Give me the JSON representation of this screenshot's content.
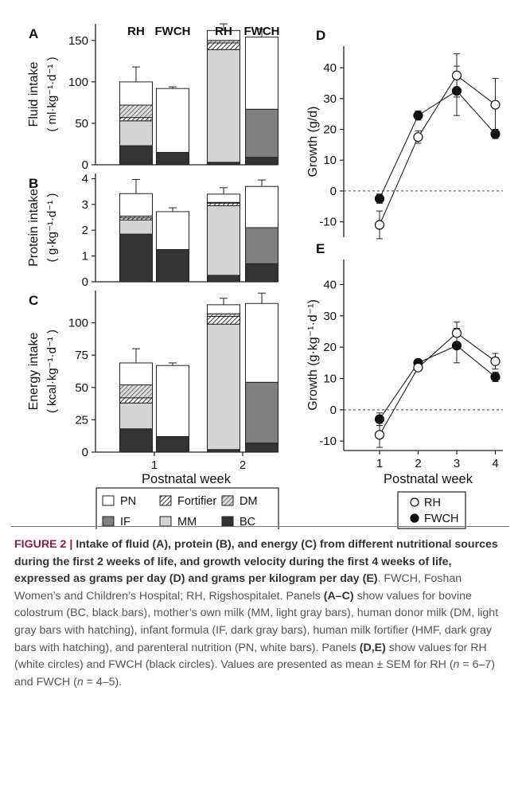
{
  "chart_data": [
    {
      "type": "bar",
      "panel": "A",
      "ylabel": "Fluid intake",
      "yunit": "( ml·kg⁻¹·d⁻¹ )",
      "ylim": [
        0,
        170
      ],
      "yticks": [
        "0",
        "50",
        "100",
        "150"
      ],
      "ytick_values": [
        0,
        50,
        100,
        150
      ],
      "xlabel": "",
      "groups": [
        {
          "category": "1",
          "bars": [
            {
              "label": "RH",
              "stacks": [
                {
                  "source": "BC",
                  "value": 23,
                  "err": 6
                },
                {
                  "source": "MM",
                  "value": 30,
                  "err": 7
                },
                {
                  "source": "Fortifier",
                  "value": 4,
                  "err": 0
                },
                {
                  "source": "DM",
                  "value": 15,
                  "err": 0
                },
                {
                  "source": "PN",
                  "value": 28,
                  "err": 18
                }
              ]
            },
            {
              "label": "FWCH",
              "stacks": [
                {
                  "source": "BC",
                  "value": 15,
                  "err": 3
                },
                {
                  "source": "PN",
                  "value": 77,
                  "err": 2
                }
              ]
            }
          ]
        },
        {
          "category": "2",
          "bars": [
            {
              "label": "RH",
              "stacks": [
                {
                  "source": "BC",
                  "value": 3,
                  "err": 1
                },
                {
                  "source": "MM",
                  "value": 136,
                  "err": 3
                },
                {
                  "source": "Fortifier",
                  "value": 8,
                  "err": 0
                },
                {
                  "source": "DM",
                  "value": 3,
                  "err": 0
                },
                {
                  "source": "PN",
                  "value": 12,
                  "err": 8
                }
              ]
            },
            {
              "label": "FWCH",
              "stacks": [
                {
                  "source": "BC",
                  "value": 9,
                  "err": 2
                },
                {
                  "source": "IF",
                  "value": 58,
                  "err": 12
                },
                {
                  "source": "PN",
                  "value": 87,
                  "err": 10
                }
              ]
            }
          ]
        }
      ]
    },
    {
      "type": "bar",
      "panel": "B",
      "ylabel": "Protein intake",
      "yunit": "( g·kg⁻¹·d⁻¹ )",
      "ylim": [
        0,
        4.2
      ],
      "yticks": [
        "0",
        "1",
        "2",
        "3",
        "4"
      ],
      "ytick_values": [
        0,
        1,
        2,
        3,
        4
      ],
      "xlabel": "",
      "groups": [
        {
          "category": "1",
          "bars": [
            {
              "label": "RH",
              "stacks": [
                {
                  "source": "BC",
                  "value": 1.85,
                  "err": 0.45
                },
                {
                  "source": "MM",
                  "value": 0.55,
                  "err": 0.2
                },
                {
                  "source": "Fortifier",
                  "value": 0.08,
                  "err": 0
                },
                {
                  "source": "DM",
                  "value": 0.07,
                  "err": 0
                },
                {
                  "source": "PN",
                  "value": 0.87,
                  "err": 0.55
                }
              ]
            },
            {
              "label": "FWCH",
              "stacks": [
                {
                  "source": "BC",
                  "value": 1.25,
                  "err": 0.2
                },
                {
                  "source": "PN",
                  "value": 1.47,
                  "err": 0.15
                }
              ]
            }
          ]
        },
        {
          "category": "2",
          "bars": [
            {
              "label": "RH",
              "stacks": [
                {
                  "source": "BC",
                  "value": 0.25,
                  "err": 0.05
                },
                {
                  "source": "MM",
                  "value": 2.7,
                  "err": 0.12
                },
                {
                  "source": "Fortifier",
                  "value": 0.1,
                  "err": 0
                },
                {
                  "source": "DM",
                  "value": 0.03,
                  "err": 0
                },
                {
                  "source": "PN",
                  "value": 0.32,
                  "err": 0.25
                }
              ]
            },
            {
              "label": "FWCH",
              "stacks": [
                {
                  "source": "BC",
                  "value": 0.7,
                  "err": 0.2
                },
                {
                  "source": "IF",
                  "value": 1.4,
                  "err": 0.25
                },
                {
                  "source": "PN",
                  "value": 1.6,
                  "err": 0.25
                }
              ]
            }
          ]
        }
      ]
    },
    {
      "type": "bar",
      "panel": "C",
      "ylabel": "Energy intake",
      "yunit": "( kcal·kg⁻¹·d⁻¹ )",
      "ylim": [
        0,
        125
      ],
      "yticks": [
        "0",
        "25",
        "50",
        "75",
        "100"
      ],
      "ytick_values": [
        0,
        25,
        50,
        75,
        100
      ],
      "xlabel": "Postnatal week",
      "groups": [
        {
          "category": "1",
          "bars": [
            {
              "label": "RH",
              "stacks": [
                {
                  "source": "BC",
                  "value": 18,
                  "err": 4
                },
                {
                  "source": "MM",
                  "value": 20,
                  "err": 5
                },
                {
                  "source": "Fortifier",
                  "value": 4,
                  "err": 0
                },
                {
                  "source": "DM",
                  "value": 10,
                  "err": 6
                },
                {
                  "source": "PN",
                  "value": 17,
                  "err": 11
                }
              ]
            },
            {
              "label": "FWCH",
              "stacks": [
                {
                  "source": "BC",
                  "value": 12,
                  "err": 2
                },
                {
                  "source": "PN",
                  "value": 55,
                  "err": 2
                }
              ]
            }
          ]
        },
        {
          "category": "2",
          "bars": [
            {
              "label": "RH",
              "stacks": [
                {
                  "source": "BC",
                  "value": 2,
                  "err": 0.5
                },
                {
                  "source": "MM",
                  "value": 97,
                  "err": 3
                },
                {
                  "source": "Fortifier",
                  "value": 6,
                  "err": 0
                },
                {
                  "source": "DM",
                  "value": 2,
                  "err": 0
                },
                {
                  "source": "PN",
                  "value": 7,
                  "err": 5
                }
              ]
            },
            {
              "label": "FWCH",
              "stacks": [
                {
                  "source": "BC",
                  "value": 7,
                  "err": 2
                },
                {
                  "source": "IF",
                  "value": 47,
                  "err": 9
                },
                {
                  "source": "PN",
                  "value": 61,
                  "err": 8
                }
              ]
            }
          ]
        }
      ]
    },
    {
      "type": "line",
      "panel": "D",
      "ylabel": "Growth (g/d)",
      "ylim": [
        -15,
        47
      ],
      "yticks": [
        "-10",
        "0",
        "10",
        "20",
        "30",
        "40"
      ],
      "ytick_values": [
        -10,
        0,
        10,
        20,
        30,
        40
      ],
      "x": [
        1,
        2,
        3,
        4
      ],
      "series": [
        {
          "name": "RH",
          "values": [
            -11,
            17.5,
            37.5,
            28
          ],
          "err": [
            4.5,
            2,
            7,
            8.5
          ],
          "marker": "open"
        },
        {
          "name": "FWCH",
          "values": [
            -2.5,
            24.5,
            32.5,
            18.5
          ],
          "err": [
            1.5,
            1.5,
            8,
            1.5
          ],
          "marker": "filled"
        }
      ]
    },
    {
      "type": "line",
      "panel": "E",
      "ylabel": "Growth (g·kg⁻¹·d⁻¹)",
      "ylim": [
        -13,
        48
      ],
      "yticks": [
        "-10",
        "0",
        "10",
        "20",
        "30",
        "40"
      ],
      "ytick_values": [
        -10,
        0,
        10,
        20,
        30,
        40
      ],
      "xlabel": "Postnatal week",
      "xticks": [
        "1",
        "2",
        "3",
        "4"
      ],
      "x": [
        1,
        2,
        3,
        4
      ],
      "series": [
        {
          "name": "RH",
          "values": [
            -8,
            13.5,
            24.5,
            15.5
          ],
          "err": [
            4,
            1,
            3.5,
            2.5
          ],
          "marker": "open"
        },
        {
          "name": "FWCH",
          "values": [
            -3,
            15,
            20.5,
            10.5
          ],
          "err": [
            2,
            1,
            5.5,
            1.5
          ],
          "marker": "filled"
        }
      ]
    }
  ],
  "figure": {
    "col_headers": [
      "RH",
      "FWCH",
      "RH",
      "FWCH"
    ],
    "panel_letters": [
      "A",
      "B",
      "C",
      "D",
      "E"
    ],
    "bar_xticks": [
      "1",
      "2"
    ],
    "bar_xlabel": "Postnatal week",
    "bar_legend": [
      {
        "label": "PN",
        "fill": "#ffffff",
        "hatch": false
      },
      {
        "label": "Fortifier",
        "fill": "#4a4a4a",
        "hatch": true
      },
      {
        "label": "DM",
        "fill": "#bdbdbd",
        "hatch": true
      },
      {
        "label": "IF",
        "fill": "#808080",
        "hatch": false
      },
      {
        "label": "MM",
        "fill": "#d3d3d3",
        "hatch": false
      },
      {
        "label": "BC",
        "fill": "#333333",
        "hatch": false
      }
    ],
    "line_legend": [
      {
        "label": "RH",
        "marker": "open"
      },
      {
        "label": "FWCH",
        "marker": "filled"
      }
    ],
    "colors": {
      "PN": "#ffffff",
      "Fortifier": "#4a4a4a",
      "DM": "#bdbdbd",
      "IF": "#808080",
      "MM": "#d3d3d3",
      "BC": "#333333"
    }
  },
  "caption": {
    "label": "FIGURE 2",
    "title": "Intake of fluid (A), protein (B), and energy (C) from different nutritional sources during the first 2 weeks of life, and growth velocity during the first 4 weeks of life, expressed as grams per day (D) and grams per kilogram per day (E)",
    "body_1": ". FWCH, Foshan Women’s and Children’s Hospital; RH, Rigshospitalet. Panels ",
    "b1": "(A–C)",
    "body_2": " show values for bovine colostrum (BC, black bars), mother’s own milk (MM, light gray bars), human donor milk (DM, light gray bars with hatching), infant formula (IF, dark gray bars), human milk fortifier (HMF, dark gray bars with hatching), and parenteral nutrition (PN, white bars). Panels ",
    "b2": "(D,E)",
    "body_3": " show values for RH (white circles) and FWCH (black circles). Values are presented as mean ± SEM for RH (",
    "n": "n",
    "body_4": " = 6–7) and FWCH (",
    "body_5": " = 4–5)."
  }
}
